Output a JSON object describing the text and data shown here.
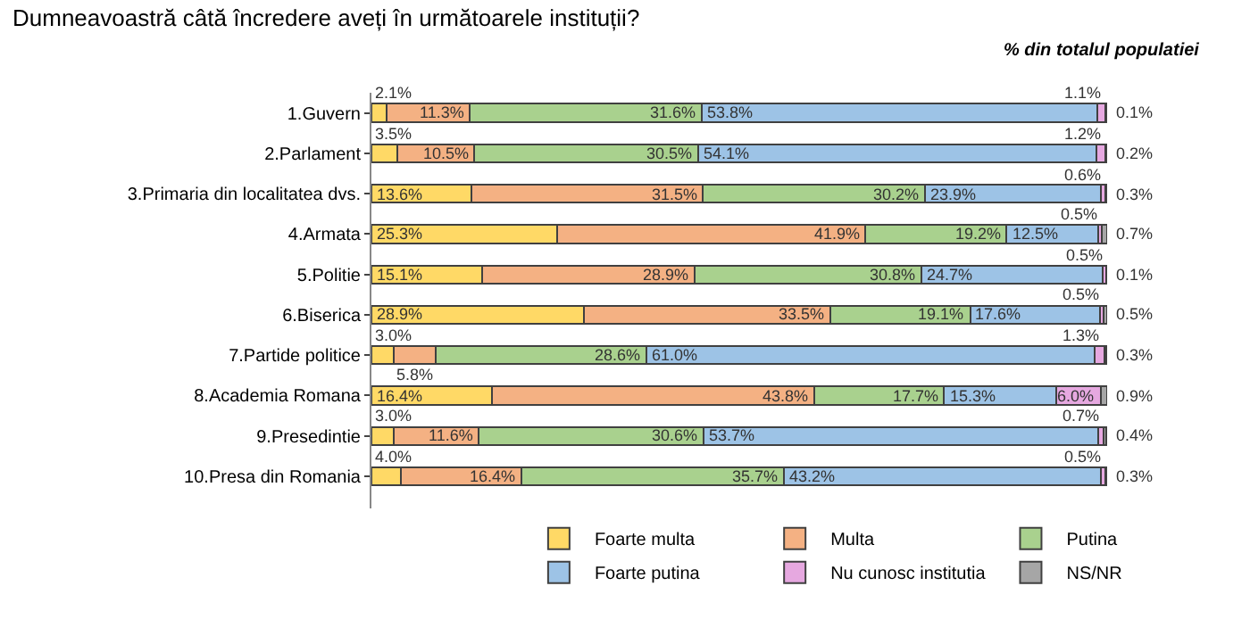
{
  "chart_data": {
    "type": "bar",
    "orientation": "horizontal",
    "stacked": true,
    "title": "Dumneavoastră câtă încredere aveți în următoarele instituții?",
    "subtitle": "% din totalul populatiei",
    "categories": [
      "1.Guvern",
      "2.Parlament",
      "3.Primaria din localitatea dvs.",
      "4.Armata",
      "5.Politie",
      "6.Biserica",
      "7.Partide politice",
      "8.Academia Romana",
      "9.Presedintie",
      "10.Presa din Romania"
    ],
    "series": [
      {
        "name": "Foarte multa",
        "color": "#ffd966",
        "values": [
          2.1,
          3.5,
          13.6,
          25.3,
          15.1,
          28.9,
          3.0,
          16.4,
          3.0,
          4.0
        ],
        "value_labels": [
          "2.1%",
          "3.5%",
          "13.6%",
          "25.3%",
          "15.1%",
          "28.9%",
          "3.0%",
          "16.4%",
          "3.0%",
          "4.0%"
        ]
      },
      {
        "name": "Multa",
        "color": "#f4b183",
        "values": [
          11.3,
          10.5,
          31.5,
          41.9,
          28.9,
          33.5,
          5.8,
          43.8,
          11.6,
          16.4
        ],
        "value_labels": [
          "11.3%",
          "10.5%",
          "31.5%",
          "41.9%",
          "28.9%",
          "33.5%",
          "5.8%",
          "43.8%",
          "11.6%",
          "16.4%"
        ]
      },
      {
        "name": "Putina",
        "color": "#a9d18e",
        "values": [
          31.6,
          30.5,
          30.2,
          19.2,
          30.8,
          19.1,
          28.6,
          17.7,
          30.6,
          35.7
        ],
        "value_labels": [
          "31.6%",
          "30.5%",
          "30.2%",
          "19.2%",
          "30.8%",
          "19.1%",
          "28.6%",
          "17.7%",
          "30.6%",
          "35.7%"
        ]
      },
      {
        "name": "Foarte putina",
        "color": "#9dc3e6",
        "values": [
          53.8,
          54.1,
          23.9,
          12.5,
          24.7,
          17.6,
          61.0,
          15.3,
          53.7,
          43.2
        ],
        "value_labels": [
          "53.8%",
          "54.1%",
          "23.9%",
          "12.5%",
          "24.7%",
          "17.6%",
          "61.0%",
          "15.3%",
          "53.7%",
          "43.2%"
        ]
      },
      {
        "name": "Nu cunosc institutia",
        "color": "#e6a8e0",
        "values": [
          1.1,
          1.2,
          0.6,
          0.5,
          0.5,
          0.5,
          1.3,
          6.0,
          0.7,
          0.5
        ],
        "value_labels": [
          "1.1%",
          "1.2%",
          "0.6%",
          "0.5%",
          "0.5%",
          "0.5%",
          "1.3%",
          "6.0%",
          "0.7%",
          "0.5%"
        ]
      },
      {
        "name": "NS/NR",
        "color": "#a6a6a6",
        "values": [
          0.1,
          0.2,
          0.3,
          0.7,
          0.1,
          0.5,
          0.3,
          0.9,
          0.4,
          0.3
        ],
        "value_labels": [
          "0.1%",
          "0.2%",
          "0.3%",
          "0.7%",
          "0.1%",
          "0.5%",
          "0.3%",
          "0.9%",
          "0.4%",
          "0.3%"
        ]
      }
    ],
    "legend": "bottom"
  }
}
